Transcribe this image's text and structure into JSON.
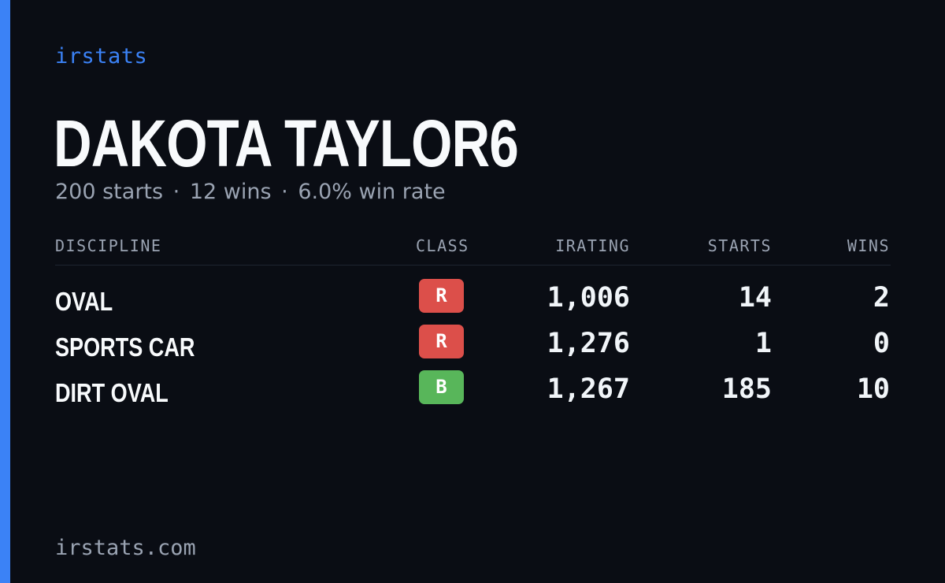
{
  "brand": "irstats",
  "player": {
    "name": "DAKOTA TAYLOR6",
    "starts": "200 starts",
    "wins": "12 wins",
    "win_rate": "6.0% win rate",
    "separator": "·"
  },
  "table": {
    "headers": {
      "discipline": "DISCIPLINE",
      "class": "CLASS",
      "irating": "IRATING",
      "starts": "STARTS",
      "wins": "WINS"
    },
    "rows": [
      {
        "discipline": "OVAL",
        "class": "R",
        "class_color": "#dc4f4a",
        "irating": "1,006",
        "starts": "14",
        "wins": "2"
      },
      {
        "discipline": "SPORTS CAR",
        "class": "R",
        "class_color": "#dc4f4a",
        "irating": "1,276",
        "starts": "1",
        "wins": "0"
      },
      {
        "discipline": "DIRT OVAL",
        "class": "B",
        "class_color": "#58b65a",
        "irating": "1,267",
        "starts": "185",
        "wins": "10"
      }
    ]
  },
  "footer": "irstats.com",
  "colors": {
    "background": "#0a0d14",
    "accent": "#3b82f6",
    "class_r": "#dc4f4a",
    "class_b": "#58b65a"
  }
}
